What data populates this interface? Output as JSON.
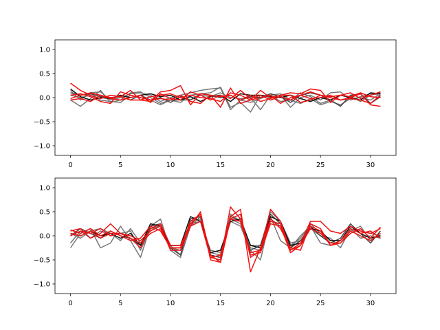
{
  "chart_data": [
    {
      "type": "line",
      "panel": "top",
      "title": "",
      "xlabel": "",
      "ylabel": "",
      "xlim": [
        -1.55,
        32.55
      ],
      "ylim": [
        -1.2,
        1.2
      ],
      "grid": false,
      "x_ticks": [
        0,
        5,
        10,
        15,
        20,
        25,
        30
      ],
      "y_ticks": [
        -1.0,
        -0.5,
        0.0,
        0.5,
        1.0
      ],
      "x_tick_labels": [
        "0",
        "5",
        "10",
        "15",
        "20",
        "25",
        "30"
      ],
      "y_tick_labels": [
        "−1.0",
        "−0.5",
        "0.0",
        "0.5",
        "1.0"
      ],
      "x": [
        0,
        1,
        2,
        3,
        4,
        5,
        6,
        7,
        8,
        9,
        10,
        11,
        12,
        13,
        14,
        15,
        16,
        17,
        18,
        19,
        20,
        21,
        22,
        23,
        24,
        25,
        26,
        27,
        28,
        29,
        30,
        31
      ],
      "series": [
        {
          "color": "#777777",
          "values": [
            0.15,
            -0.05,
            0.1,
            0.12,
            -0.05,
            0.0,
            0.08,
            0.1,
            0.05,
            -0.08,
            0.0,
            0.05,
            0.1,
            0.15,
            0.18,
            0.2,
            -0.25,
            -0.05,
            -0.1,
            -0.02,
            0.05,
            0.08,
            -0.05,
            0.1,
            0.02,
            -0.12,
            -0.05,
            0.05,
            0.02,
            -0.08,
            0.05,
            0.1
          ]
        },
        {
          "color": "#777777",
          "values": [
            -0.05,
            -0.18,
            -0.02,
            0.15,
            -0.1,
            -0.05,
            0.1,
            0.12,
            0.0,
            -0.12,
            -0.05,
            -0.1,
            0.05,
            0.08,
            0.1,
            0.22,
            -0.2,
            -0.1,
            -0.3,
            0.05,
            0.0,
            0.05,
            -0.2,
            0.0,
            0.05,
            -0.05,
            0.1,
            0.12,
            -0.05,
            0.02,
            0.08,
            0.05
          ]
        },
        {
          "color": "#777777",
          "values": [
            0.05,
            0.0,
            0.05,
            -0.05,
            -0.08,
            -0.1,
            0.05,
            0.0,
            -0.05,
            -0.15,
            -0.05,
            -0.05,
            -0.05,
            0.05,
            0.02,
            0.1,
            0.0,
            -0.02,
            0.0,
            -0.25,
            0.05,
            -0.08,
            -0.05,
            -0.12,
            -0.02,
            -0.15,
            -0.08,
            -0.15,
            -0.02,
            0.0,
            -0.05,
            0.08
          ]
        },
        {
          "color": "#444444",
          "values": [
            0.1,
            0.05,
            0.08,
            0.02,
            0.0,
            0.02,
            -0.05,
            0.05,
            -0.05,
            0.0,
            -0.1,
            0.02,
            -0.05,
            0.08,
            0.05,
            0.0,
            0.05,
            -0.05,
            0.02,
            0.0,
            0.08,
            0.02,
            -0.1,
            0.05,
            0.1,
            0.05,
            -0.05,
            -0.18,
            0.05,
            0.08,
            -0.12,
            0.02
          ]
        },
        {
          "color": "#111111",
          "values": [
            0.18,
            0.02,
            -0.05,
            0.0,
            -0.02,
            0.05,
            0.0,
            0.05,
            0.08,
            0.02,
            0.05,
            -0.05,
            0.02,
            -0.08,
            0.02,
            0.05,
            -0.08,
            0.08,
            0.05,
            0.05,
            0.02,
            0.0,
            0.05,
            -0.02,
            -0.08,
            0.0,
            -0.05,
            0.05,
            0.0,
            -0.05,
            0.1,
            0.08
          ]
        },
        {
          "color": "#ee1111",
          "values": [
            0.3,
            0.15,
            0.05,
            -0.02,
            0.05,
            0.02,
            0.15,
            -0.05,
            -0.08,
            0.12,
            0.15,
            0.25,
            -0.15,
            0.08,
            0.05,
            -0.2,
            0.2,
            -0.12,
            -0.05,
            0.15,
            0.0,
            0.05,
            0.1,
            0.08,
            0.18,
            0.15,
            -0.1,
            0.05,
            0.02,
            0.1,
            0.02,
            0.0
          ]
        },
        {
          "color": "#ee1111",
          "values": [
            0.05,
            0.08,
            0.02,
            -0.08,
            -0.12,
            0.12,
            0.05,
            0.0,
            -0.05,
            -0.02,
            -0.05,
            0.05,
            -0.08,
            -0.12,
            0.05,
            0.02,
            0.05,
            -0.05,
            0.05,
            -0.08,
            -0.02,
            0.05,
            0.05,
            -0.1,
            -0.05,
            0.05,
            0.0,
            -0.05,
            0.0,
            0.08,
            -0.15,
            -0.18
          ]
        },
        {
          "color": "#ee1111",
          "values": [
            -0.02,
            0.05,
            0.1,
            0.05,
            0.0,
            0.02,
            -0.05,
            -0.05,
            0.02,
            0.05,
            0.08,
            0.0,
            0.05,
            0.0,
            -0.02,
            -0.08,
            0.1,
            0.05,
            -0.05,
            0.0,
            0.05,
            -0.12,
            0.0,
            0.05,
            0.12,
            0.05,
            0.02,
            0.05,
            0.1,
            -0.02,
            0.05,
            0.12
          ]
        },
        {
          "color": "#ee1111",
          "values": [
            -0.05,
            -0.02,
            -0.08,
            0.05,
            -0.02,
            -0.05,
            0.0,
            0.05,
            -0.1,
            0.08,
            -0.02,
            -0.05,
            0.12,
            0.05,
            -0.05,
            0.05,
            -0.02,
            0.15,
            -0.02,
            0.05,
            -0.05,
            0.02,
            -0.05,
            0.05,
            -0.02,
            0.0,
            0.05,
            -0.05,
            -0.02,
            -0.05,
            -0.12,
            0.05
          ]
        }
      ]
    },
    {
      "type": "line",
      "panel": "bottom",
      "title": "",
      "xlabel": "",
      "ylabel": "",
      "xlim": [
        -1.55,
        32.55
      ],
      "ylim": [
        -1.2,
        1.2
      ],
      "grid": false,
      "x_ticks": [
        0,
        5,
        10,
        15,
        20,
        25,
        30
      ],
      "y_ticks": [
        -1.0,
        -0.5,
        0.0,
        0.5,
        1.0
      ],
      "x_tick_labels": [
        "0",
        "5",
        "10",
        "15",
        "20",
        "25",
        "30"
      ],
      "y_tick_labels": [
        "−1.0",
        "−0.5",
        "0.0",
        "0.5",
        "1.0"
      ],
      "x": [
        0,
        1,
        2,
        3,
        4,
        5,
        6,
        7,
        8,
        9,
        10,
        11,
        12,
        13,
        14,
        15,
        16,
        17,
        18,
        19,
        20,
        21,
        22,
        23,
        24,
        25,
        26,
        27,
        28,
        29,
        30,
        31
      ],
      "series": [
        {
          "color": "#777777",
          "values": [
            -0.25,
            0.05,
            0.15,
            -0.25,
            -0.15,
            0.2,
            -0.1,
            -0.45,
            0.2,
            0.35,
            -0.3,
            -0.45,
            0.2,
            0.4,
            -0.35,
            -0.4,
            0.3,
            0.2,
            -0.3,
            -0.5,
            0.4,
            -0.1,
            -0.25,
            0.0,
            0.2,
            -0.15,
            -0.2,
            -0.1,
            0.2,
            0.1,
            0.05,
            0.0
          ]
        },
        {
          "color": "#777777",
          "values": [
            -0.15,
            0.1,
            -0.05,
            0.1,
            0.0,
            0.05,
            0.1,
            -0.3,
            0.15,
            0.2,
            -0.2,
            -0.4,
            0.3,
            0.35,
            -0.4,
            -0.45,
            0.45,
            0.3,
            -0.2,
            -0.2,
            0.5,
            0.3,
            -0.15,
            -0.1,
            0.15,
            0.0,
            -0.05,
            -0.25,
            0.15,
            -0.05,
            0.0,
            -0.05
          ]
        },
        {
          "color": "#777777",
          "values": [
            0.05,
            -0.05,
            0.1,
            0.15,
            0.05,
            -0.1,
            0.15,
            -0.15,
            0.1,
            0.25,
            -0.25,
            -0.3,
            0.25,
            0.3,
            -0.3,
            -0.35,
            0.35,
            0.25,
            -0.25,
            -0.3,
            0.35,
            0.2,
            -0.2,
            -0.05,
            0.25,
            0.05,
            -0.1,
            -0.1,
            0.1,
            0.2,
            -0.1,
            0.05
          ]
        },
        {
          "color": "#444444",
          "values": [
            0.0,
            0.15,
            0.05,
            -0.05,
            0.1,
            0.0,
            -0.05,
            -0.2,
            0.2,
            0.25,
            -0.25,
            -0.4,
            0.35,
            0.4,
            -0.4,
            -0.45,
            0.4,
            0.3,
            -0.3,
            -0.2,
            0.45,
            0.25,
            -0.25,
            -0.1,
            0.2,
            0.0,
            -0.15,
            -0.05,
            0.25,
            0.05,
            -0.15,
            0.1
          ]
        },
        {
          "color": "#111111",
          "values": [
            0.05,
            0.0,
            0.1,
            0.0,
            0.05,
            -0.05,
            0.05,
            -0.2,
            0.25,
            0.2,
            -0.2,
            -0.2,
            0.4,
            0.3,
            -0.35,
            -0.3,
            0.3,
            0.35,
            -0.2,
            -0.25,
            0.4,
            0.3,
            -0.2,
            -0.15,
            0.15,
            0.1,
            -0.1,
            -0.1,
            0.2,
            0.05,
            -0.05,
            0.0
          ]
        },
        {
          "color": "#ee1111",
          "values": [
            0.1,
            0.15,
            -0.05,
            0.05,
            0.25,
            0.05,
            -0.05,
            -0.25,
            0.15,
            0.25,
            -0.2,
            -0.2,
            0.25,
            0.45,
            -0.45,
            -0.5,
            0.6,
            0.35,
            -0.35,
            -0.3,
            0.55,
            0.3,
            -0.3,
            -0.15,
            0.3,
            0.3,
            0.1,
            0.05,
            0.2,
            0.1,
            0.05,
            0.15
          ]
        },
        {
          "color": "#ee1111",
          "values": [
            0.12,
            0.05,
            0.15,
            0.0,
            0.1,
            0.0,
            -0.1,
            -0.05,
            0.2,
            0.1,
            -0.25,
            -0.25,
            0.3,
            0.45,
            -0.4,
            -0.55,
            0.4,
            0.55,
            -0.75,
            -0.25,
            0.35,
            0.15,
            -0.25,
            -0.3,
            0.25,
            0.15,
            -0.2,
            -0.15,
            0.05,
            0.15,
            -0.05,
            0.18
          ]
        },
        {
          "color": "#ee1111",
          "values": [
            0.0,
            0.1,
            0.05,
            0.15,
            0.0,
            0.05,
            0.0,
            -0.1,
            0.1,
            0.2,
            -0.3,
            -0.3,
            0.2,
            0.5,
            -0.5,
            -0.55,
            0.35,
            0.45,
            -0.45,
            -0.3,
            0.3,
            0.25,
            -0.3,
            -0.2,
            0.2,
            0.1,
            -0.2,
            -0.1,
            0.15,
            0.05,
            0.1,
            -0.05
          ]
        },
        {
          "color": "#ee1111",
          "values": [
            0.05,
            0.0,
            0.1,
            -0.05,
            0.05,
            0.05,
            -0.05,
            -0.15,
            0.05,
            0.15,
            -0.25,
            -0.25,
            0.2,
            0.3,
            -0.45,
            -0.4,
            0.35,
            0.3,
            -0.4,
            -0.35,
            0.25,
            0.2,
            -0.35,
            -0.2,
            0.15,
            0.05,
            -0.15,
            -0.15,
            0.1,
            0.0,
            -0.1,
            0.05
          ]
        }
      ]
    }
  ]
}
